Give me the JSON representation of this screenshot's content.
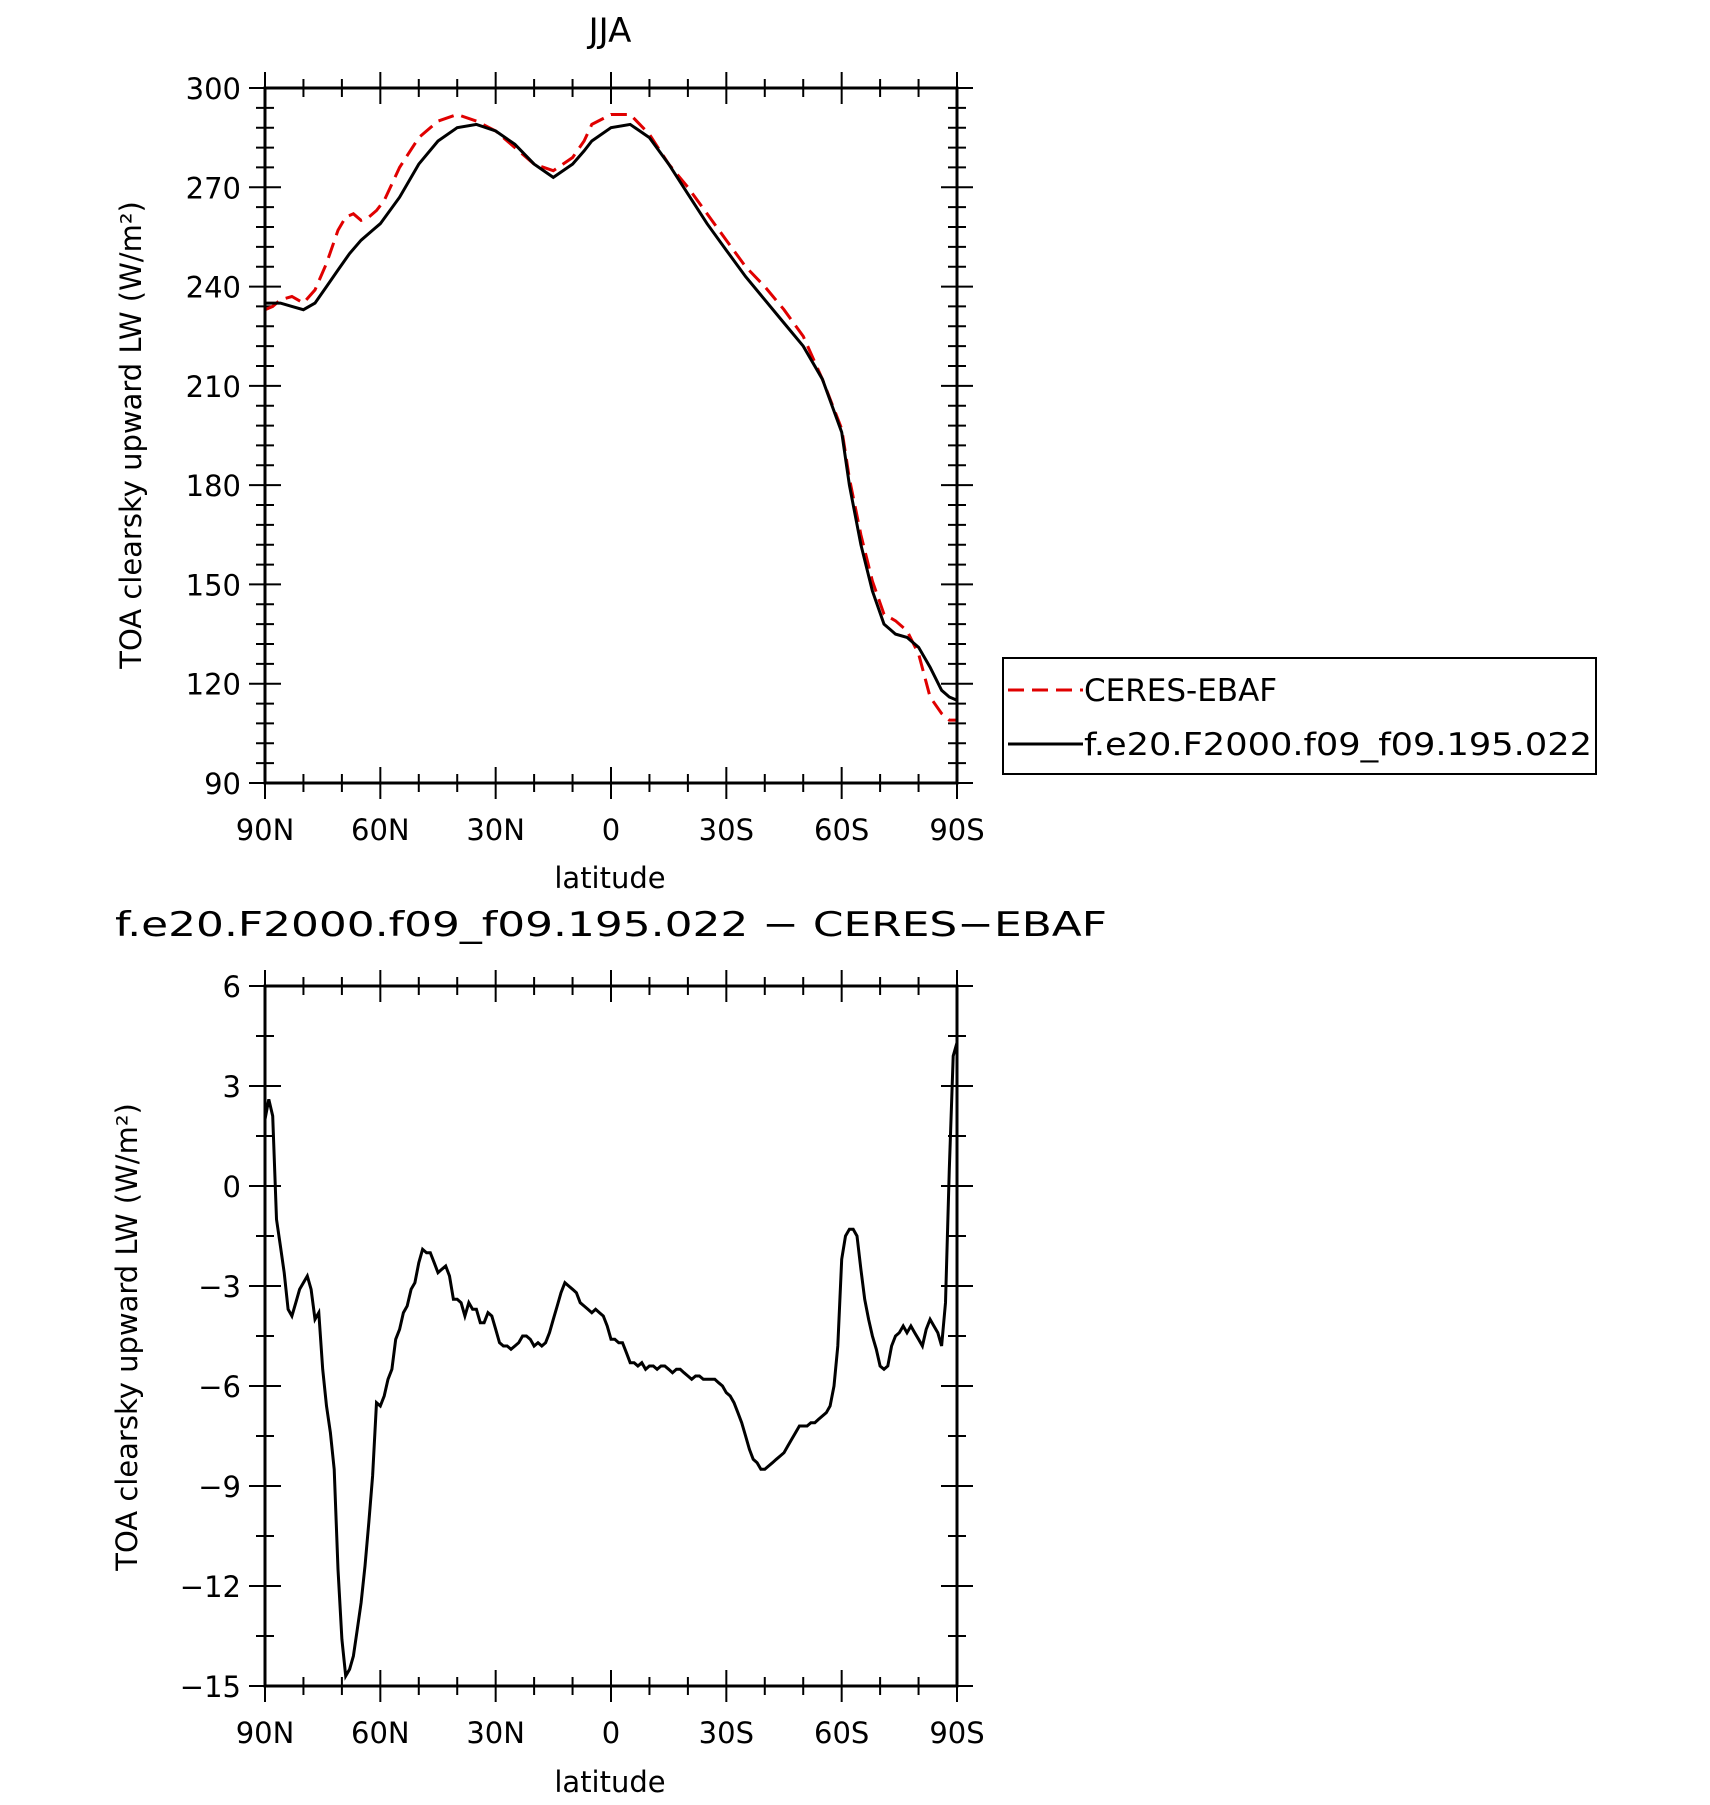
{
  "chart_data": [
    {
      "type": "line",
      "title": "JJA",
      "xlabel": "latitude",
      "ylabel": "TOA clearsky upward LW (W/m²)",
      "xticks": [
        "90N",
        "60N",
        "30N",
        "0",
        "30S",
        "60S",
        "90S"
      ],
      "yticks": [
        "90",
        "120",
        "150",
        "180",
        "210",
        "240",
        "270",
        "300"
      ],
      "xlim": [
        90,
        -90
      ],
      "ylim": [
        90,
        300
      ],
      "legend": {
        "position": "right"
      },
      "series": [
        {
          "name": "CERES-EBAF",
          "color": "#e00000",
          "style": "dashed",
          "x": [
            90,
            88,
            86,
            83,
            80,
            77,
            74,
            71,
            69,
            67,
            65,
            63,
            61,
            59,
            55,
            50,
            45,
            40,
            35,
            30,
            25,
            20,
            15,
            10,
            7,
            5,
            0,
            -5,
            -10,
            -15,
            -20,
            -25,
            -30,
            -35,
            -40,
            -45,
            -50,
            -55,
            -60,
            -62,
            -65,
            -68,
            -71,
            -74,
            -77,
            -80,
            -83,
            -86,
            -88,
            -90
          ],
          "y": [
            233,
            234,
            236,
            237,
            235,
            239,
            247,
            257,
            261,
            262,
            260,
            261,
            263,
            266,
            276,
            285,
            290,
            292,
            290,
            287,
            282,
            277,
            275,
            279,
            284,
            289,
            292,
            292,
            286,
            277,
            270,
            262,
            254,
            246,
            240,
            233,
            225,
            212,
            197,
            182,
            165,
            151,
            141,
            139,
            136,
            129,
            116,
            111,
            109,
            109
          ]
        },
        {
          "name": "f.e20.F2000.f09_f09.195.022",
          "color": "#000000",
          "style": "solid",
          "x": [
            90,
            88,
            86,
            83,
            80,
            77,
            74,
            71,
            68,
            65,
            62,
            60,
            55,
            50,
            45,
            40,
            35,
            30,
            25,
            20,
            15,
            10,
            7,
            5,
            0,
            -5,
            -10,
            -15,
            -20,
            -25,
            -30,
            -35,
            -40,
            -45,
            -50,
            -55,
            -60,
            -62,
            -65,
            -68,
            -71,
            -74,
            -77,
            -80,
            -83,
            -86,
            -88,
            -90
          ],
          "y": [
            235,
            235,
            235,
            234,
            233,
            235,
            240,
            245,
            250,
            254,
            257,
            259,
            267,
            277,
            284,
            288,
            289,
            287,
            283,
            277,
            273,
            277,
            281,
            284,
            288,
            289,
            285,
            277,
            268,
            259,
            251,
            243,
            236,
            229,
            222,
            212,
            196,
            180,
            162,
            148,
            138,
            135,
            134,
            131,
            125,
            118,
            116,
            115
          ]
        }
      ]
    },
    {
      "type": "line",
      "title": "f.e20.F2000.f09_f09.195.022 − CERES−EBAF",
      "xlabel": "latitude",
      "ylabel": "TOA clearsky upward LW (W/m²)",
      "xticks": [
        "90N",
        "60N",
        "30N",
        "0",
        "30S",
        "60S",
        "90S"
      ],
      "yticks": [
        "−15",
        "−12",
        "−9",
        "−6",
        "−3",
        "0",
        "3",
        "6"
      ],
      "xlim": [
        90,
        -90
      ],
      "ylim": [
        -15,
        6
      ],
      "series": [
        {
          "color": "#000000",
          "style": "solid",
          "x": [
            90,
            89,
            88,
            87,
            86,
            85,
            84,
            83,
            82,
            81,
            80,
            79,
            78,
            77,
            76,
            75,
            74,
            73,
            72,
            71,
            70,
            69,
            68,
            67,
            66,
            65,
            64,
            63,
            62,
            61,
            60,
            59,
            58,
            57,
            56,
            55,
            54,
            53,
            52,
            51,
            50,
            49,
            48,
            47,
            46,
            45,
            44,
            43,
            42,
            41,
            40,
            39,
            38,
            37,
            36,
            35,
            34,
            33,
            32,
            31,
            30,
            29,
            28,
            27,
            26,
            25,
            24,
            23,
            22,
            21,
            20,
            19,
            18,
            17,
            16,
            15,
            14,
            13,
            12,
            11,
            10,
            9,
            8,
            7,
            6,
            5,
            4,
            3,
            2,
            1,
            0,
            -1,
            -2,
            -3,
            -4,
            -5,
            -6,
            -7,
            -8,
            -9,
            -10,
            -11,
            -12,
            -13,
            -14,
            -15,
            -16,
            -17,
            -18,
            -19,
            -20,
            -21,
            -22,
            -23,
            -24,
            -25,
            -26,
            -27,
            -28,
            -29,
            -30,
            -31,
            -32,
            -33,
            -34,
            -35,
            -36,
            -37,
            -38,
            -39,
            -40,
            -41,
            -42,
            -43,
            -44,
            -45,
            -46,
            -47,
            -48,
            -49,
            -50,
            -51,
            -52,
            -53,
            -54,
            -55,
            -56,
            -57,
            -58,
            -59,
            -60,
            -61,
            -62,
            -63,
            -64,
            -65,
            -66,
            -67,
            -68,
            -69,
            -70,
            -71,
            -72,
            -73,
            -74,
            -75,
            -76,
            -77,
            -78,
            -79,
            -80,
            -81,
            -82,
            -83,
            -84,
            -85,
            -86,
            -87,
            -88,
            -89,
            -90
          ],
          "y": [
            2.0,
            2.6,
            2.1,
            -1.0,
            -1.8,
            -2.6,
            -3.7,
            -3.9,
            -3.5,
            -3.1,
            -2.9,
            -2.7,
            -3.1,
            -4.0,
            -3.8,
            -5.5,
            -6.6,
            -7.4,
            -8.5,
            -11.5,
            -13.6,
            -14.7,
            -14.5,
            -14.1,
            -13.3,
            -12.5,
            -11.4,
            -10.1,
            -8.7,
            -6.5,
            -6.6,
            -6.3,
            -5.8,
            -5.5,
            -4.6,
            -4.3,
            -3.8,
            -3.6,
            -3.1,
            -2.9,
            -2.3,
            -1.9,
            -2.0,
            -2.0,
            -2.3,
            -2.6,
            -2.5,
            -2.4,
            -2.7,
            -3.4,
            -3.4,
            -3.5,
            -3.9,
            -3.5,
            -3.7,
            -3.7,
            -4.1,
            -4.1,
            -3.8,
            -3.9,
            -4.3,
            -4.7,
            -4.8,
            -4.8,
            -4.9,
            -4.8,
            -4.7,
            -4.5,
            -4.5,
            -4.6,
            -4.8,
            -4.7,
            -4.8,
            -4.7,
            -4.4,
            -4.0,
            -3.6,
            -3.2,
            -2.9,
            -3.0,
            -3.1,
            -3.2,
            -3.5,
            -3.6,
            -3.7,
            -3.8,
            -3.7,
            -3.8,
            -3.9,
            -4.2,
            -4.6,
            -4.6,
            -4.7,
            -4.7,
            -5.0,
            -5.3,
            -5.3,
            -5.4,
            -5.3,
            -5.5,
            -5.4,
            -5.4,
            -5.5,
            -5.4,
            -5.4,
            -5.5,
            -5.6,
            -5.5,
            -5.5,
            -5.6,
            -5.7,
            -5.8,
            -5.7,
            -5.7,
            -5.8,
            -5.8,
            -5.8,
            -5.8,
            -5.9,
            -6.0,
            -6.2,
            -6.3,
            -6.5,
            -6.8,
            -7.1,
            -7.5,
            -7.9,
            -8.2,
            -8.3,
            -8.5,
            -8.5,
            -8.4,
            -8.3,
            -8.2,
            -8.1,
            -8.0,
            -7.8,
            -7.6,
            -7.4,
            -7.2,
            -7.2,
            -7.2,
            -7.1,
            -7.1,
            -7.0,
            -6.9,
            -6.8,
            -6.6,
            -6.0,
            -4.8,
            -2.2,
            -1.5,
            -1.3,
            -1.3,
            -1.5,
            -2.5,
            -3.4,
            -4.0,
            -4.5,
            -4.9,
            -5.4,
            -5.5,
            -5.4,
            -4.8,
            -4.5,
            -4.4,
            -4.2,
            -4.4,
            -4.2,
            -4.4,
            -4.6,
            -4.8,
            -4.3,
            -4.0,
            -4.2,
            -4.4,
            -4.8,
            -3.5,
            0.5,
            3.9,
            4.3
          ]
        }
      ]
    }
  ]
}
